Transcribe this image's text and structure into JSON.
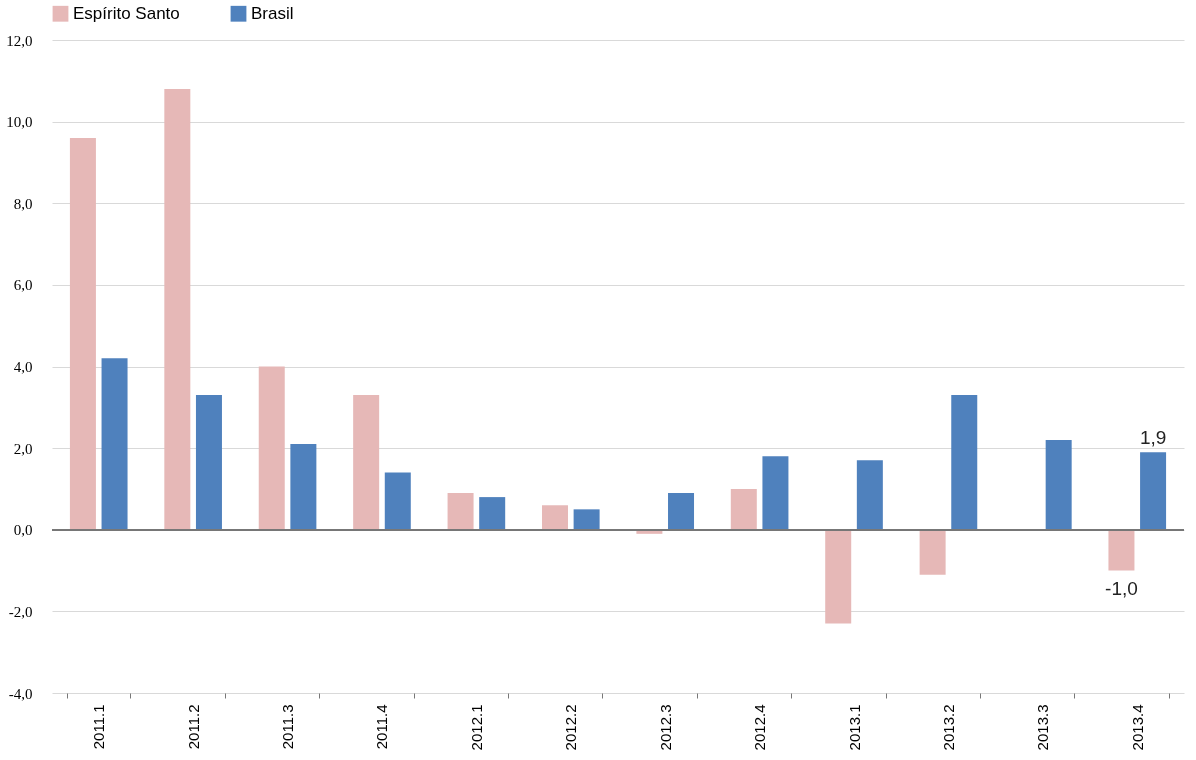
{
  "chart_data": {
    "type": "bar",
    "categories": [
      "2011.1",
      "2011.2",
      "2011.3",
      "2011.4",
      "2012.1",
      "2012.2",
      "2012.3",
      "2012.4",
      "2013.1",
      "2013.2",
      "2013.3",
      "2013.4"
    ],
    "series": [
      {
        "name": "Espírito Santo",
        "color": "#e6b8b7",
        "values": [
          9.6,
          10.8,
          4.0,
          3.3,
          0.9,
          0.6,
          -0.1,
          1.0,
          -2.3,
          -1.1,
          0.0,
          -1.0
        ],
        "value_labels": [
          null,
          null,
          null,
          null,
          null,
          null,
          null,
          null,
          null,
          null,
          null,
          "-1,0"
        ]
      },
      {
        "name": "Brasil",
        "color": "#4f81bd",
        "values": [
          4.2,
          3.3,
          2.1,
          1.4,
          0.8,
          0.5,
          0.9,
          1.8,
          1.7,
          3.3,
          2.2,
          1.9
        ],
        "value_labels": [
          null,
          null,
          null,
          null,
          null,
          null,
          null,
          null,
          null,
          null,
          null,
          "1,9"
        ]
      }
    ],
    "ylim": [
      -4.0,
      12.0
    ],
    "yticks": [
      {
        "value": -4,
        "label": "-4,0"
      },
      {
        "value": -2,
        "label": "-2,0"
      },
      {
        "value": 0,
        "label": "0,0"
      },
      {
        "value": 2,
        "label": "2,0"
      },
      {
        "value": 4,
        "label": "4,0"
      },
      {
        "value": 6,
        "label": "6,0"
      },
      {
        "value": 8,
        "label": "8,0"
      },
      {
        "value": 10,
        "label": "10,0"
      },
      {
        "value": 12,
        "label": "12,0"
      }
    ],
    "grid": "y",
    "legend": "top"
  }
}
